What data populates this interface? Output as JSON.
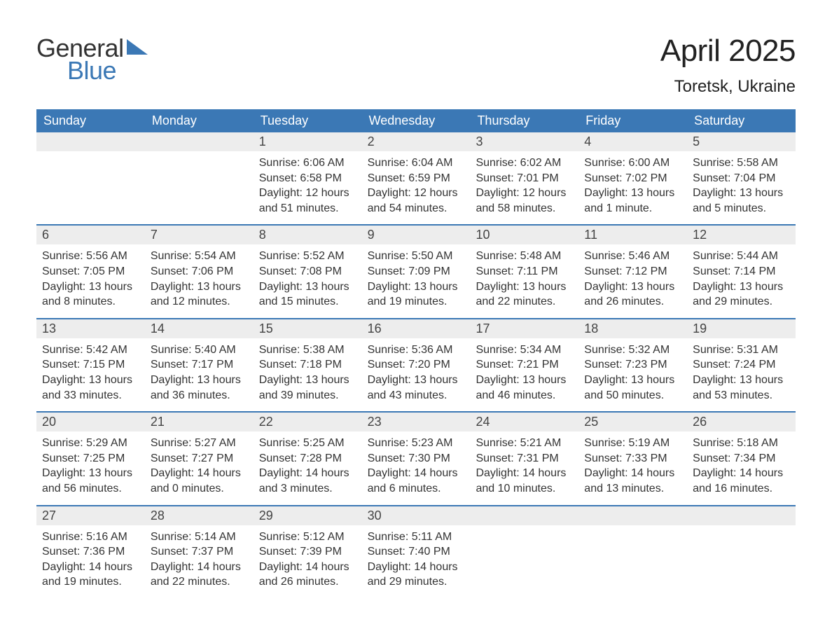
{
  "colors": {
    "header_bg": "#3b78b5",
    "header_text": "#ffffff",
    "daynum_bg": "#ededed",
    "body_text": "#333333",
    "week_border": "#3b78b5",
    "page_bg": "#ffffff",
    "logo_dark": "#333333",
    "logo_blue": "#3b78b5"
  },
  "fonts": {
    "month_title_size": 44,
    "location_size": 24,
    "header_cell_size": 18,
    "daynum_size": 18,
    "body_size": 16
  },
  "logo": {
    "word1": "General",
    "word2": "Blue"
  },
  "title": "April 2025",
  "location": "Toretsk, Ukraine",
  "weekdays": [
    "Sunday",
    "Monday",
    "Tuesday",
    "Wednesday",
    "Thursday",
    "Friday",
    "Saturday"
  ],
  "labels": {
    "sunrise": "Sunrise",
    "sunset": "Sunset",
    "daylight": "Daylight"
  },
  "weeks": [
    [
      null,
      null,
      {
        "n": "1",
        "sunrise": "6:06 AM",
        "sunset": "6:58 PM",
        "daylight": "12 hours and 51 minutes."
      },
      {
        "n": "2",
        "sunrise": "6:04 AM",
        "sunset": "6:59 PM",
        "daylight": "12 hours and 54 minutes."
      },
      {
        "n": "3",
        "sunrise": "6:02 AM",
        "sunset": "7:01 PM",
        "daylight": "12 hours and 58 minutes."
      },
      {
        "n": "4",
        "sunrise": "6:00 AM",
        "sunset": "7:02 PM",
        "daylight": "13 hours and 1 minute."
      },
      {
        "n": "5",
        "sunrise": "5:58 AM",
        "sunset": "7:04 PM",
        "daylight": "13 hours and 5 minutes."
      }
    ],
    [
      {
        "n": "6",
        "sunrise": "5:56 AM",
        "sunset": "7:05 PM",
        "daylight": "13 hours and 8 minutes."
      },
      {
        "n": "7",
        "sunrise": "5:54 AM",
        "sunset": "7:06 PM",
        "daylight": "13 hours and 12 minutes."
      },
      {
        "n": "8",
        "sunrise": "5:52 AM",
        "sunset": "7:08 PM",
        "daylight": "13 hours and 15 minutes."
      },
      {
        "n": "9",
        "sunrise": "5:50 AM",
        "sunset": "7:09 PM",
        "daylight": "13 hours and 19 minutes."
      },
      {
        "n": "10",
        "sunrise": "5:48 AM",
        "sunset": "7:11 PM",
        "daylight": "13 hours and 22 minutes."
      },
      {
        "n": "11",
        "sunrise": "5:46 AM",
        "sunset": "7:12 PM",
        "daylight": "13 hours and 26 minutes."
      },
      {
        "n": "12",
        "sunrise": "5:44 AM",
        "sunset": "7:14 PM",
        "daylight": "13 hours and 29 minutes."
      }
    ],
    [
      {
        "n": "13",
        "sunrise": "5:42 AM",
        "sunset": "7:15 PM",
        "daylight": "13 hours and 33 minutes."
      },
      {
        "n": "14",
        "sunrise": "5:40 AM",
        "sunset": "7:17 PM",
        "daylight": "13 hours and 36 minutes."
      },
      {
        "n": "15",
        "sunrise": "5:38 AM",
        "sunset": "7:18 PM",
        "daylight": "13 hours and 39 minutes."
      },
      {
        "n": "16",
        "sunrise": "5:36 AM",
        "sunset": "7:20 PM",
        "daylight": "13 hours and 43 minutes."
      },
      {
        "n": "17",
        "sunrise": "5:34 AM",
        "sunset": "7:21 PM",
        "daylight": "13 hours and 46 minutes."
      },
      {
        "n": "18",
        "sunrise": "5:32 AM",
        "sunset": "7:23 PM",
        "daylight": "13 hours and 50 minutes."
      },
      {
        "n": "19",
        "sunrise": "5:31 AM",
        "sunset": "7:24 PM",
        "daylight": "13 hours and 53 minutes."
      }
    ],
    [
      {
        "n": "20",
        "sunrise": "5:29 AM",
        "sunset": "7:25 PM",
        "daylight": "13 hours and 56 minutes."
      },
      {
        "n": "21",
        "sunrise": "5:27 AM",
        "sunset": "7:27 PM",
        "daylight": "14 hours and 0 minutes."
      },
      {
        "n": "22",
        "sunrise": "5:25 AM",
        "sunset": "7:28 PM",
        "daylight": "14 hours and 3 minutes."
      },
      {
        "n": "23",
        "sunrise": "5:23 AM",
        "sunset": "7:30 PM",
        "daylight": "14 hours and 6 minutes."
      },
      {
        "n": "24",
        "sunrise": "5:21 AM",
        "sunset": "7:31 PM",
        "daylight": "14 hours and 10 minutes."
      },
      {
        "n": "25",
        "sunrise": "5:19 AM",
        "sunset": "7:33 PM",
        "daylight": "14 hours and 13 minutes."
      },
      {
        "n": "26",
        "sunrise": "5:18 AM",
        "sunset": "7:34 PM",
        "daylight": "14 hours and 16 minutes."
      }
    ],
    [
      {
        "n": "27",
        "sunrise": "5:16 AM",
        "sunset": "7:36 PM",
        "daylight": "14 hours and 19 minutes."
      },
      {
        "n": "28",
        "sunrise": "5:14 AM",
        "sunset": "7:37 PM",
        "daylight": "14 hours and 22 minutes."
      },
      {
        "n": "29",
        "sunrise": "5:12 AM",
        "sunset": "7:39 PM",
        "daylight": "14 hours and 26 minutes."
      },
      {
        "n": "30",
        "sunrise": "5:11 AM",
        "sunset": "7:40 PM",
        "daylight": "14 hours and 29 minutes."
      },
      null,
      null,
      null
    ]
  ]
}
